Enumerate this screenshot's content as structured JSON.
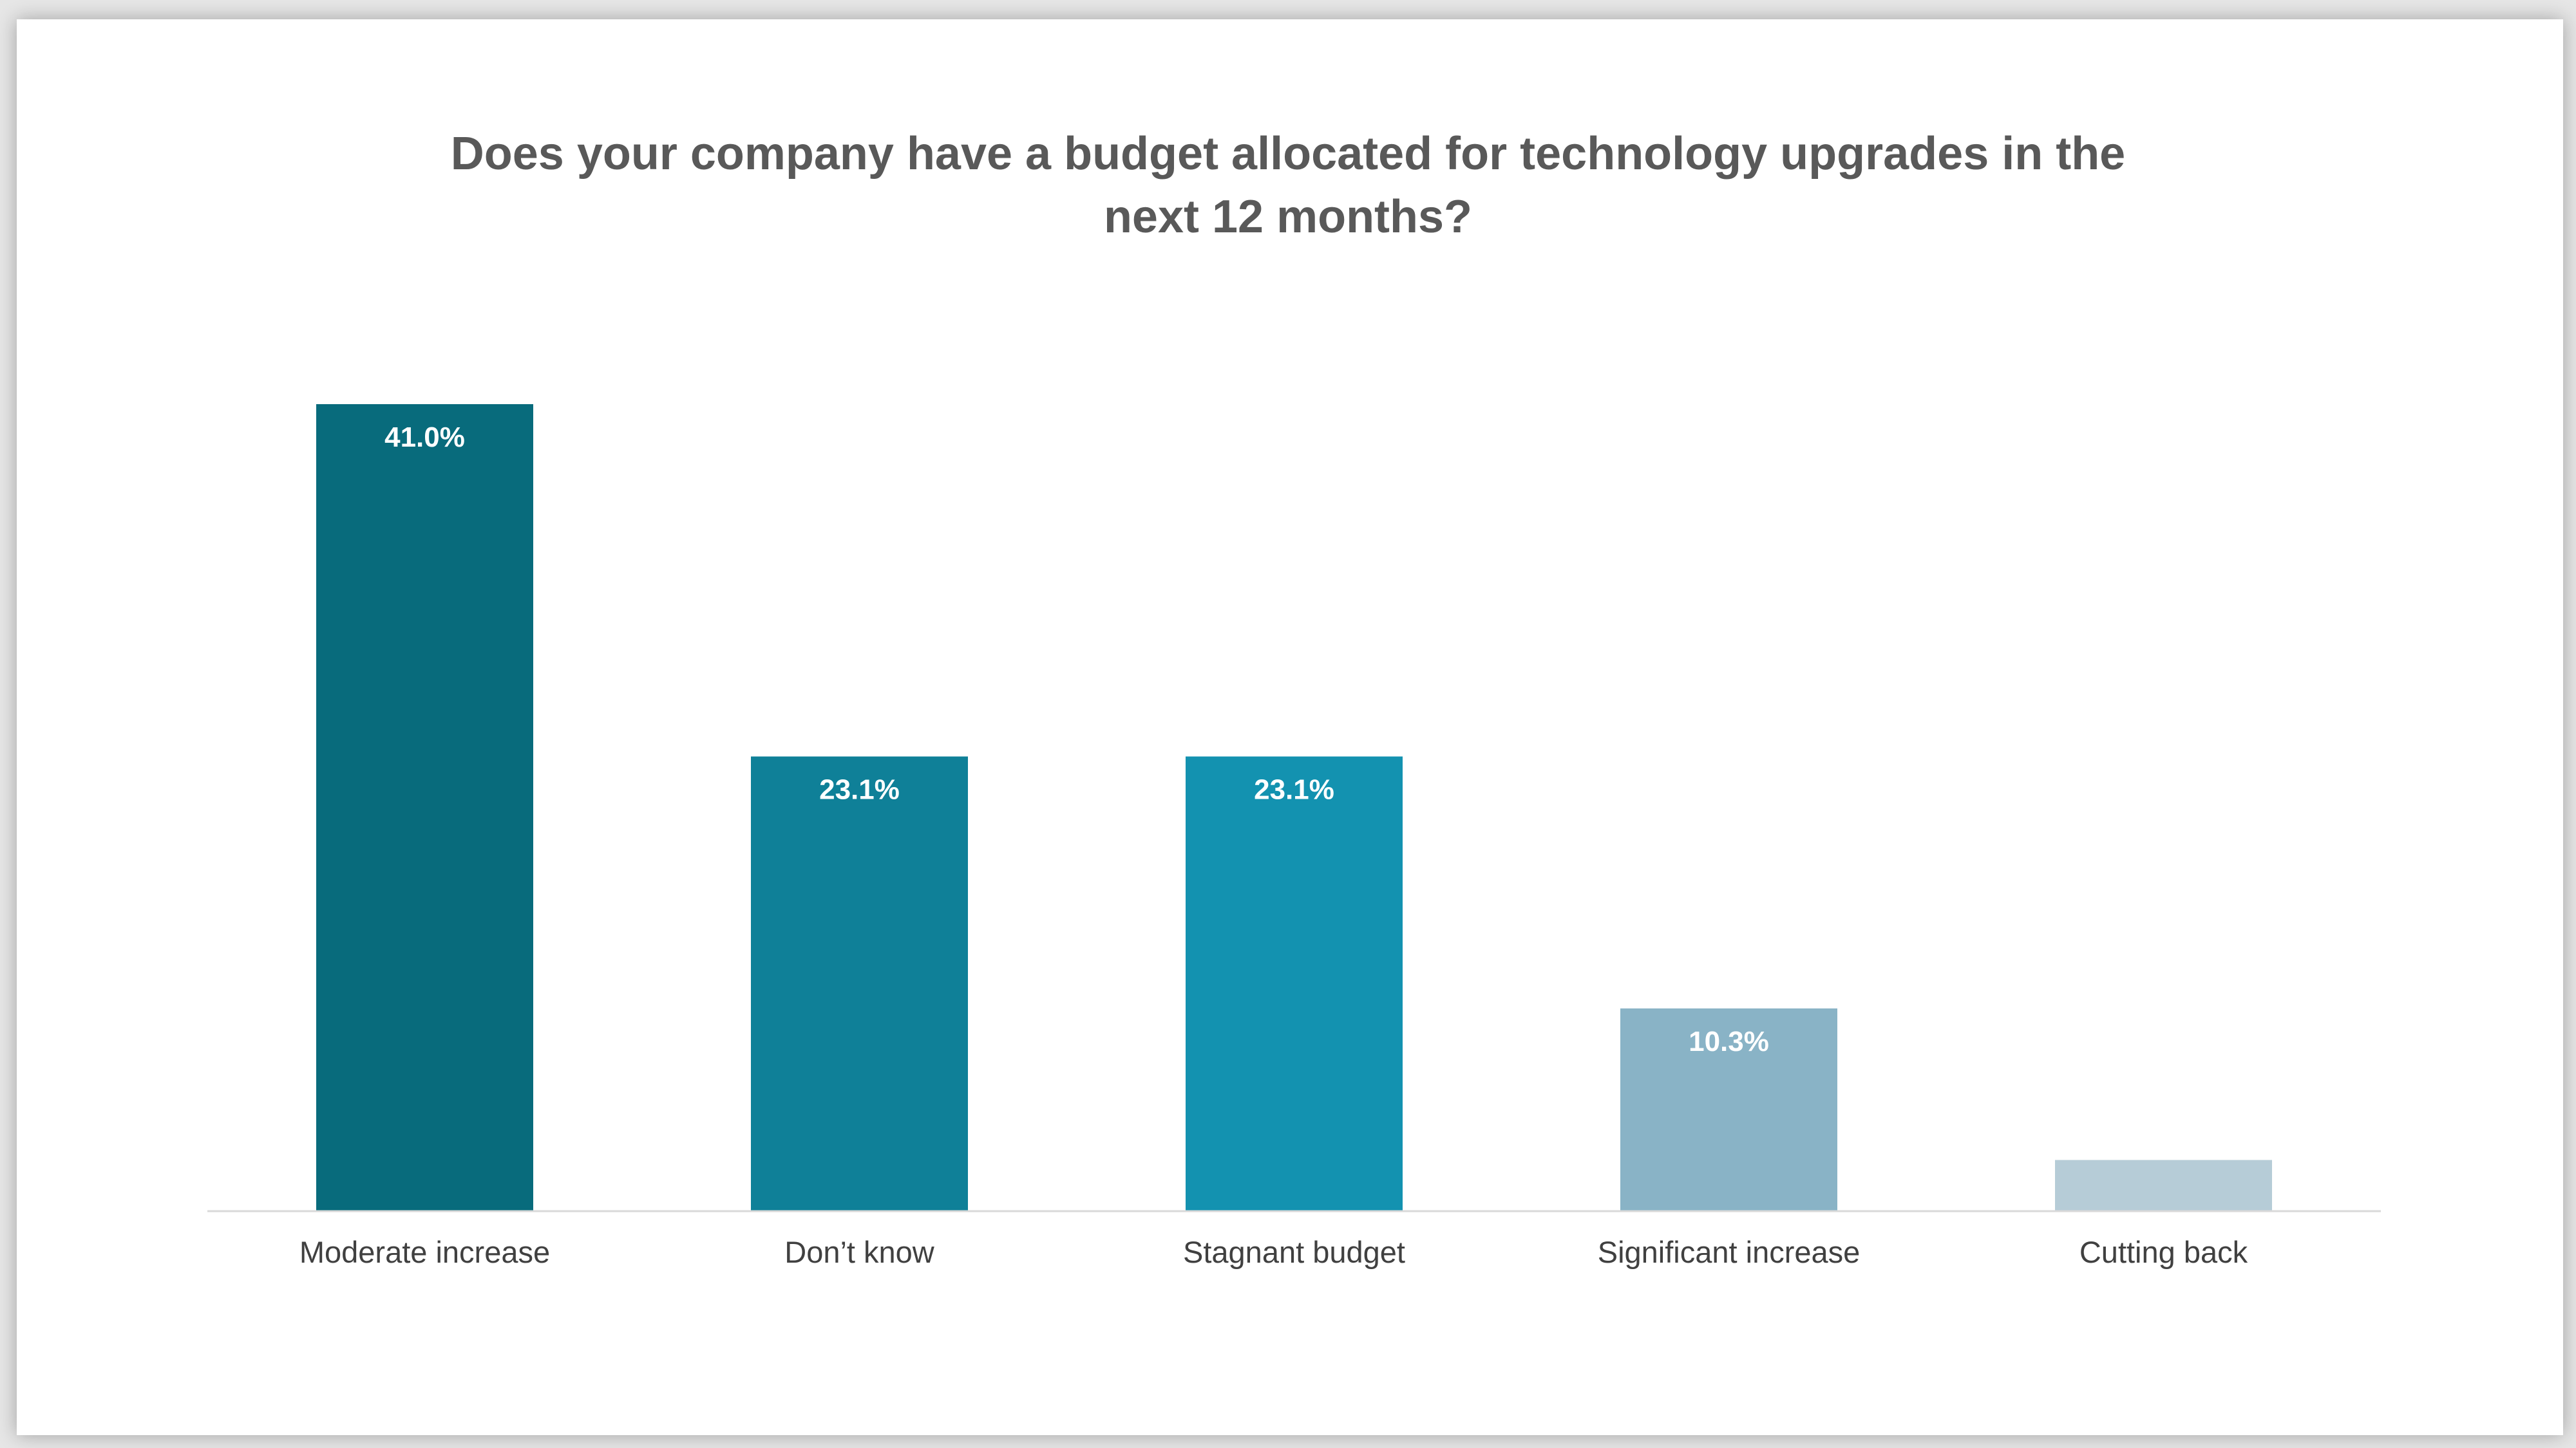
{
  "chart_data": {
    "type": "bar",
    "title": "Does your company have a budget allocated for technology upgrades in the next 12 months?",
    "title_lines": [
      "Does your company have a budget allocated for technology upgrades in the",
      "next 12 months?"
    ],
    "categories": [
      "Moderate increase",
      "Don’t know",
      "Stagnant budget",
      "Significant increase",
      "Cutting back"
    ],
    "values": [
      41.0,
      23.1,
      23.1,
      10.3,
      2.6
    ],
    "data_labels": [
      "41.0%",
      "23.1%",
      "23.1%",
      "10.3%",
      ""
    ],
    "colors": [
      "#086b7c",
      "#0f8098",
      "#1392b0",
      "#89b3c6",
      "#b6ccd7"
    ],
    "ylim": [
      0,
      41.0
    ],
    "xlabel": "",
    "ylabel": "",
    "grid": false,
    "legend": "none",
    "axis_color": "#d9d9d9"
  }
}
